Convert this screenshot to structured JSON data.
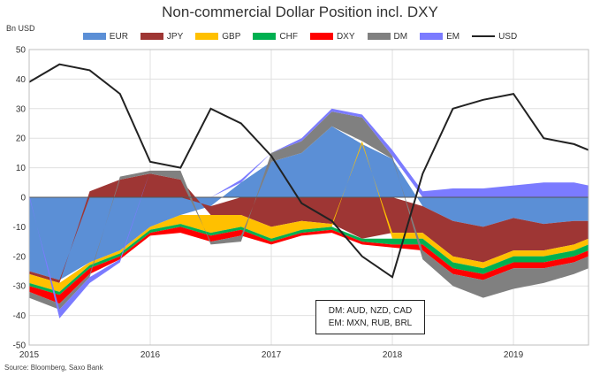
{
  "title": "Non-commercial Dollar Position incl. DXY",
  "unit_label": "Bn USD",
  "source": "Source: Bloomberg, Saxo Bank",
  "note": [
    "DM: AUD, NZD, CAD",
    "EM: MXN, RUB, BRL"
  ],
  "chart_data": {
    "type": "area",
    "title": "Non-commercial Dollar Position incl. DXY",
    "ylabel": "Bn USD",
    "ylim": [
      -50,
      50
    ],
    "yticks": [
      50,
      40,
      30,
      20,
      10,
      0,
      -10,
      -20,
      -30,
      -40,
      -50
    ],
    "xticks": [
      "2015",
      "2016",
      "2017",
      "2018",
      "2019"
    ],
    "x": [
      2015.0,
      2015.25,
      2015.5,
      2015.75,
      2016.0,
      2016.25,
      2016.5,
      2016.75,
      2017.0,
      2017.25,
      2017.5,
      2017.75,
      2018.0,
      2018.25,
      2018.5,
      2018.75,
      2019.0,
      2019.25,
      2019.5,
      2019.62
    ],
    "grid": true,
    "legend_position": "top",
    "stacked": true,
    "series": [
      {
        "name": "EUR",
        "color": "#5B8FD6",
        "values": [
          -25,
          -28,
          -22,
          -18,
          -10,
          -6,
          -3,
          5,
          12,
          15,
          24,
          18,
          13,
          -3,
          -8,
          -10,
          -7,
          -9,
          -8,
          -8
        ]
      },
      {
        "name": "JPY",
        "color": "#9E3634",
        "values": [
          -1,
          -1,
          2,
          6,
          8,
          6,
          -3,
          -6,
          -10,
          -8,
          -9,
          -14,
          -12,
          -9,
          -12,
          -12,
          -11,
          -9,
          -8,
          -6
        ]
      },
      {
        "name": "GBP",
        "color": "#FFC000",
        "values": [
          -3,
          -3,
          -1,
          -1,
          -1,
          -3,
          -6,
          -4,
          -4,
          -3,
          -1,
          1,
          -2,
          -2,
          -2,
          -2,
          -2,
          -2,
          -2,
          -2
        ]
      },
      {
        "name": "CHF",
        "color": "#00B050",
        "values": [
          -1,
          -1,
          -1,
          -1,
          -1,
          -1,
          -1,
          -1,
          -1,
          -1,
          -1,
          -1,
          -2,
          -2,
          -2,
          -2,
          -2,
          -2,
          -2,
          -2
        ]
      },
      {
        "name": "DXY",
        "color": "#FF0000",
        "values": [
          -2,
          -3,
          -2,
          -1,
          -1,
          -2,
          -2,
          -2,
          -1,
          -1,
          -1,
          -1,
          -1,
          -2,
          -2,
          -2,
          -2,
          -2,
          -2,
          -2
        ]
      },
      {
        "name": "DM",
        "color": "#808080",
        "values": [
          -2,
          -2,
          -1,
          1,
          1,
          3,
          -1,
          -2,
          3,
          4,
          5,
          8,
          1,
          -3,
          -4,
          -6,
          -7,
          -5,
          -4,
          -4
        ]
      },
      {
        "name": "EM",
        "color": "#7B7BFF",
        "values": [
          1,
          -3,
          -2,
          -1,
          0,
          0,
          0,
          1,
          0,
          1,
          1,
          1,
          2,
          2,
          3,
          3,
          4,
          5,
          5,
          4
        ]
      },
      {
        "name": "USD",
        "color": "#222222",
        "type": "line",
        "values": [
          39,
          45,
          43,
          35,
          12,
          10,
          30,
          25,
          14,
          -2,
          -8,
          -20,
          -27,
          8,
          30,
          33,
          35,
          20,
          18,
          16
        ]
      }
    ]
  }
}
